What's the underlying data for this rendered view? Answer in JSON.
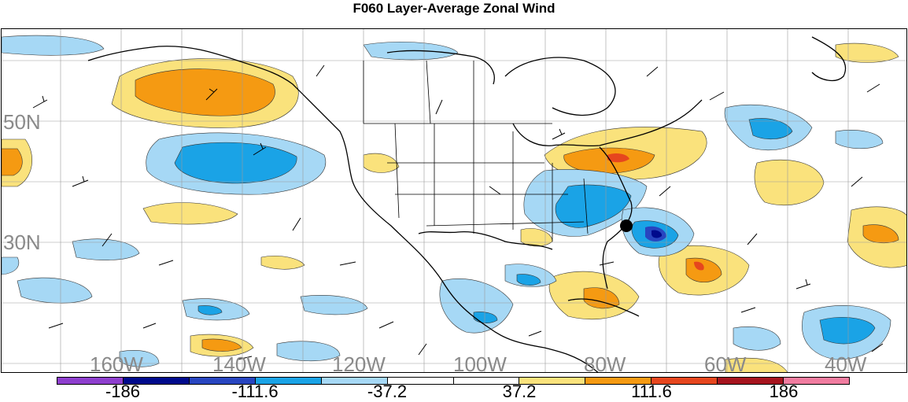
{
  "title": "F060 Layer-Average Zonal Wind",
  "map": {
    "latitude_labels": [
      "50N",
      "30N"
    ],
    "longitude_labels": [
      "160W",
      "140W",
      "120W",
      "100W",
      "80W",
      "60W",
      "40W"
    ],
    "palette": {
      "strong_negative": "#7a2fbf",
      "navy": "#000a8c",
      "blue": "#2845c0",
      "sky": "#1aa3e6",
      "light_blue": "#a6d8f5",
      "neutral": "#ffffff",
      "light_yellow": "#fae27c",
      "orange": "#f59a12",
      "red_orange": "#e6461e",
      "dark_red": "#a6141e",
      "pink": "#f07ca0"
    },
    "marker": "storm-center-dot"
  },
  "colorbar": {
    "colors": [
      "#8e3fce",
      "#000a8c",
      "#2845c0",
      "#1aa3e6",
      "#a6d8f5",
      "#ffffff",
      "#ffffff",
      "#fae27c",
      "#f59a12",
      "#e6461e",
      "#a6141e",
      "#f07ca0"
    ],
    "labels": [
      "-186",
      "-111.6",
      "-37.2",
      "37.2",
      "111.6",
      "186"
    ]
  }
}
